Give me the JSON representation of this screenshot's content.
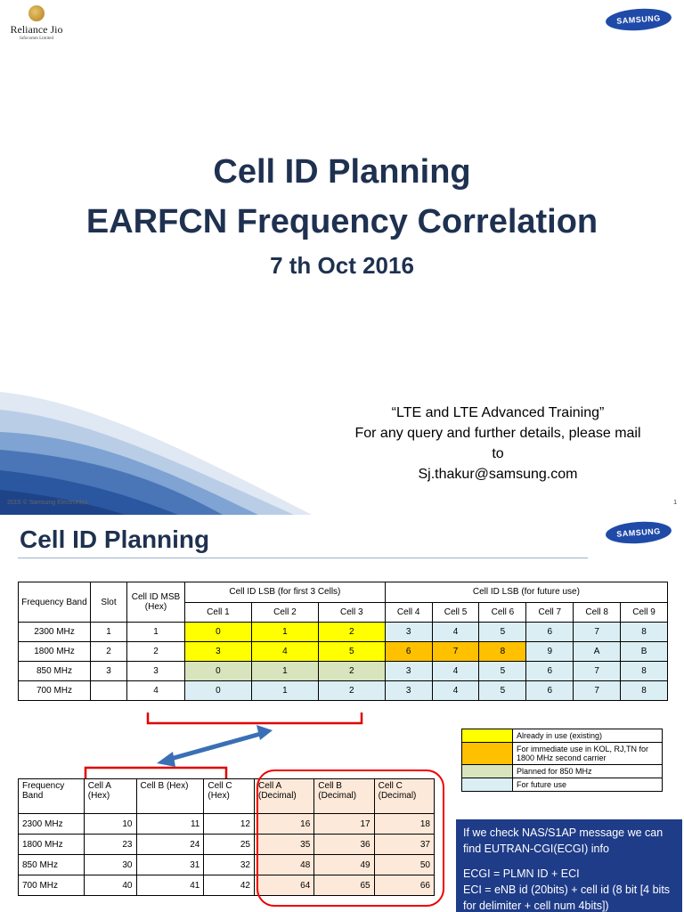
{
  "slide1": {
    "logo": {
      "name": "Reliance Jio",
      "sub": "Infocomm Limited"
    },
    "samsung_logo": "SAMSUNG",
    "title_line1": "Cell ID Planning",
    "title_line2": "EARFCN Frequency Correlation",
    "date": "7 th Oct 2016",
    "contact_line1": "“LTE and LTE Advanced Training”",
    "contact_line2": "For any query and further details, please mail",
    "contact_line3": "to",
    "contact_email": "Sj.thakur@samsung.com",
    "footer_left": "2015 © Samsung Electronics",
    "page_number": "1",
    "colors": {
      "title": "#1f3150",
      "samsung_blue": "#1f4aa8"
    }
  },
  "slide2": {
    "title": "Cell ID Planning",
    "samsung_logo": "SAMSUNG",
    "main_table": {
      "h_freq": "Frequency Band",
      "h_slot": "Slot",
      "h_msb": "Cell ID MSB (Hex)",
      "h_lsb_first": "Cell ID LSB (for first 3 Cells)",
      "h_lsb_future": "Cell ID LSB (for future use)",
      "cells": [
        "Cell 1",
        "Cell 2",
        "Cell 3",
        "Cell 4",
        "Cell 5",
        "Cell 6",
        "Cell 7",
        "Cell 8",
        "Cell 9"
      ],
      "rows": [
        {
          "band": "2300 MHz",
          "slot": "1",
          "msb": "1",
          "v": [
            "0",
            "1",
            "2",
            "3",
            "4",
            "5",
            "6",
            "7",
            "8"
          ]
        },
        {
          "band": "1800 MHz",
          "slot": "2",
          "msb": "2",
          "v": [
            "3",
            "4",
            "5",
            "6",
            "7",
            "8",
            "9",
            "A",
            "B"
          ]
        },
        {
          "band": "850 MHz",
          "slot": "3",
          "msb": "3",
          "v": [
            "0",
            "1",
            "2",
            "3",
            "4",
            "5",
            "6",
            "7",
            "8"
          ]
        },
        {
          "band": "700 MHz",
          "slot": "",
          "msb": "4",
          "v": [
            "0",
            "1",
            "2",
            "3",
            "4",
            "5",
            "6",
            "7",
            "8"
          ]
        }
      ]
    },
    "legend": [
      {
        "color": "#ffff00",
        "text": "Already in use (existing)"
      },
      {
        "color": "#ffc000",
        "text": "For immediate use in KOL, RJ,TN for 1800 MHz second carrier"
      },
      {
        "color": "#d7e4bd",
        "text": "Planned for 850 MHz"
      },
      {
        "color": "#dbeef4",
        "text": "For future use"
      }
    ],
    "hex_table": {
      "headers": [
        "Frequency Band",
        "Cell A (Hex)",
        "Cell B (Hex)",
        "Cell C (Hex)",
        "Cell A (Decimal)",
        "Cell B (Decimal)",
        "Cell C (Decimal)"
      ],
      "rows": [
        [
          "2300 MHz",
          "10",
          "11",
          "12",
          "16",
          "17",
          "18"
        ],
        [
          "1800 MHz",
          "23",
          "24",
          "25",
          "35",
          "36",
          "37"
        ],
        [
          "850 MHz",
          "30",
          "31",
          "32",
          "48",
          "49",
          "50"
        ],
        [
          "700 MHz",
          "40",
          "41",
          "42",
          "64",
          "65",
          "66"
        ]
      ]
    },
    "info_box": {
      "line1": "If we check NAS/S1AP message we can find EUTRAN-CGI(ECGI) info",
      "line2": "ECGI = PLMN ID + ECI",
      "line3": "ECI = eNB id (20bits) + cell id (8 bit [4 bits for delimiter + cell num 4bits])"
    },
    "colors": {
      "yellow": "#ffff00",
      "orange": "#ffc000",
      "green": "#d7e4bd",
      "light_blue": "#dbeef4",
      "peach": "#fde9d9",
      "info_bg": "#1f3c88",
      "bracket_red": "#e00000",
      "arrow_blue": "#3a6fb5"
    }
  }
}
